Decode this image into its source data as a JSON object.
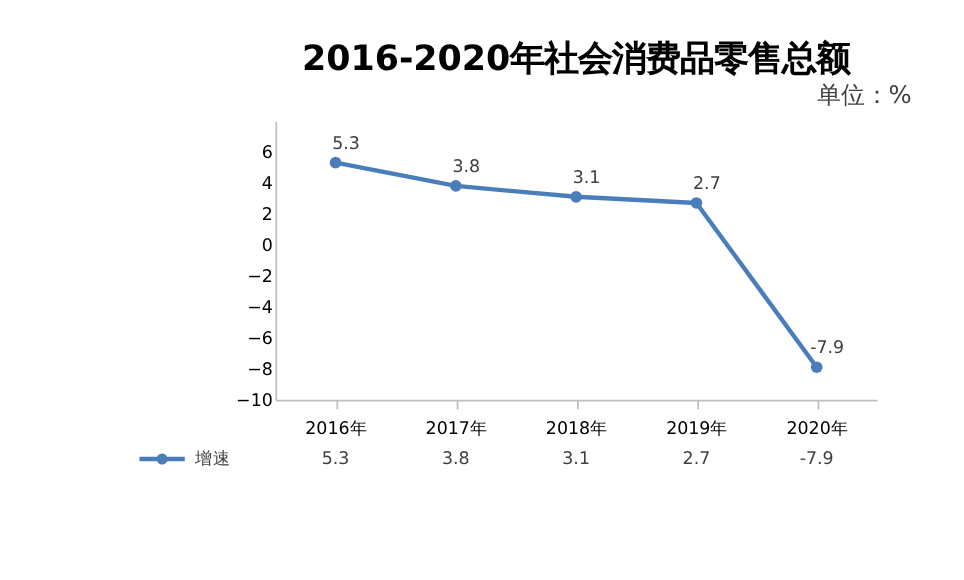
{
  "chart_data": {
    "type": "line",
    "title": "2016-2020年社会消费品零售总额",
    "annotations": [
      "单位：%",
      "5.3",
      "3.8",
      "3.1",
      "2.7",
      "-7.9"
    ],
    "categories": [
      "2016年",
      "2017年",
      "2018年",
      "2019年",
      "2020年"
    ],
    "series": [
      {
        "name": "增速",
        "color": "#4a7ebb",
        "values": [
          5.3,
          3.8,
          3.1,
          2.7,
          -7.9
        ]
      }
    ],
    "ylim": [
      -10,
      8
    ],
    "yticks": [
      -10,
      -8,
      -6,
      -4,
      -2,
      0,
      2,
      4,
      6
    ],
    "data_labels": true,
    "marker": "circle",
    "line_style": "solid",
    "legend": "bottom"
  }
}
